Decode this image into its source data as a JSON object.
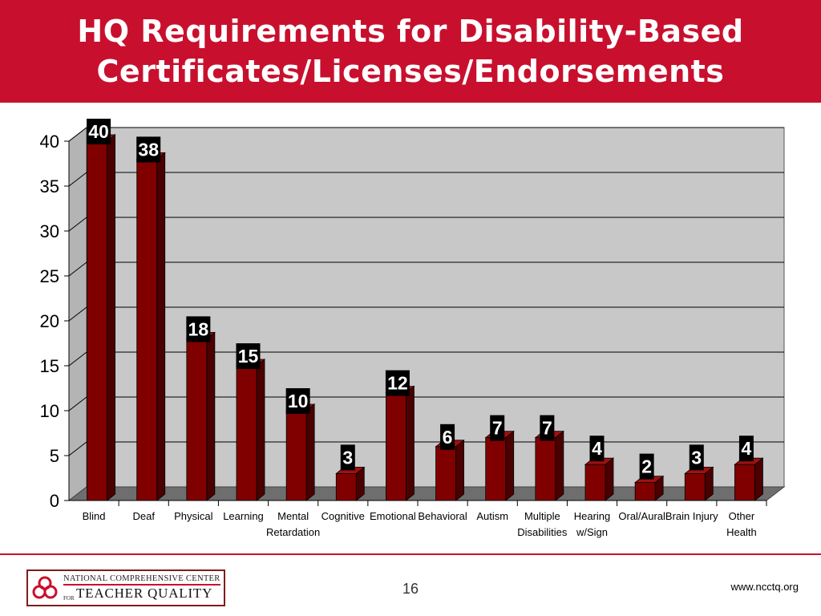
{
  "slide": {
    "title_line1": "HQ Requirements for Disability-Based",
    "title_line2": "Certificates/Licenses/Endorsements",
    "page_number": "16",
    "website": "www.ncctq.org"
  },
  "logo": {
    "line1": "NATIONAL COMPREHENSIVE CENTER",
    "for_text": "FOR",
    "line2": "TEACHER QUALITY"
  },
  "colors": {
    "title_bar": "#c8102e",
    "bar_front": "#800000",
    "bar_side": "#4a0000",
    "bar_top": "#a01010",
    "plot_wall": "#c8c8c8",
    "floor": "#6e6e6e"
  },
  "chart_data": {
    "type": "bar",
    "title": "HQ Requirements for Disability-Based Certificates/Licenses/Endorsements",
    "categories": [
      [
        "Blind"
      ],
      [
        "Deaf"
      ],
      [
        "Physical"
      ],
      [
        "Learning"
      ],
      [
        "Mental",
        "Retardation"
      ],
      [
        "Cognitive"
      ],
      [
        "Emotional"
      ],
      [
        "Behavioral"
      ],
      [
        "Autism"
      ],
      [
        "Multiple",
        "Disabilities"
      ],
      [
        "Hearing",
        "w/Sign"
      ],
      [
        "Oral/Aural"
      ],
      [
        "Brain Injury"
      ],
      [
        "Other",
        "Health"
      ]
    ],
    "values": [
      40,
      38,
      18,
      15,
      10,
      3,
      12,
      6,
      7,
      7,
      4,
      2,
      3,
      4
    ],
    "ylim": [
      0,
      40
    ],
    "yticks": [
      0,
      5,
      10,
      15,
      20,
      25,
      30,
      35,
      40
    ],
    "grid": true,
    "xlabel": "",
    "ylabel": ""
  }
}
